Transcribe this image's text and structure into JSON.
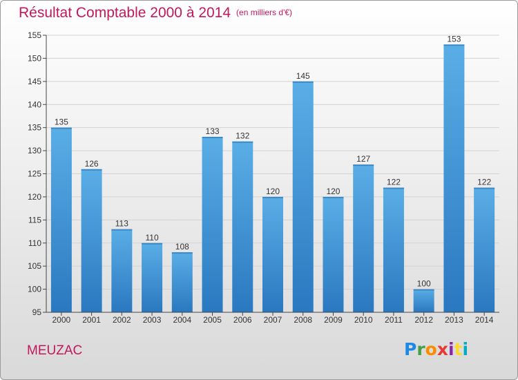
{
  "chart_data": {
    "type": "bar",
    "title": "Résultat Comptable 2000 à 2014",
    "unit": "(en milliers d'€)",
    "categories": [
      "2000",
      "2001",
      "2002",
      "2003",
      "2004",
      "2005",
      "2006",
      "2007",
      "2008",
      "2009",
      "2010",
      "2011",
      "2012",
      "2013",
      "2014"
    ],
    "values": [
      135,
      126,
      113,
      110,
      108,
      133,
      132,
      120,
      145,
      120,
      127,
      122,
      100,
      153,
      122
    ],
    "ylim": [
      95,
      155
    ],
    "yticks": [
      95,
      100,
      105,
      110,
      115,
      120,
      125,
      130,
      135,
      140,
      145,
      150,
      155
    ],
    "xlabel": "",
    "ylabel": "",
    "grid": true,
    "bar_color": "#3a8fd6"
  },
  "commune": "MEUZAC",
  "logo": [
    "P",
    "r",
    "o",
    "x",
    "i",
    "t",
    "i"
  ]
}
